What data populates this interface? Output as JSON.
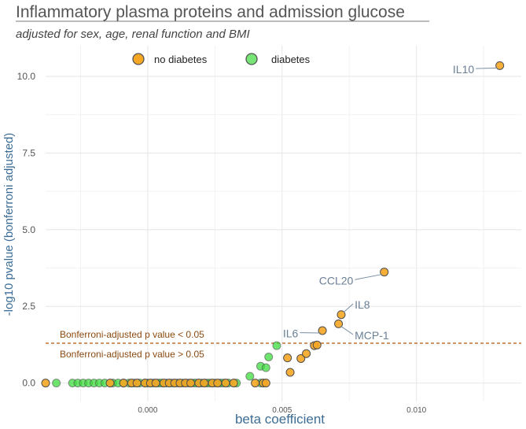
{
  "chart_data": {
    "type": "scatter",
    "title": "Inflammatory plasma proteins and admission glucose",
    "subtitle": "adjusted for sex, age, renal function and BMI",
    "xlabel": "beta coefficient",
    "ylabel": "-log10 pvalue (bonferroni adjusted)",
    "xlim": [
      -0.0038,
      0.0139
    ],
    "ylim": [
      -0.6,
      11.0
    ],
    "x_ticks": [
      0.0,
      0.005,
      0.01
    ],
    "x_tick_labels": [
      "0.000",
      "0.005",
      "0.010"
    ],
    "y_ticks": [
      0.0,
      2.5,
      5.0,
      7.5,
      10.0
    ],
    "y_tick_labels": [
      "0.0",
      "2.5",
      "5.0",
      "7.5",
      "10.0"
    ],
    "grid": true,
    "legend_position": "top",
    "reference_line": {
      "y": 1.3,
      "label_above": "Bonferroni-adjusted p value < 0.05",
      "label_below": "Bonferroni-adjusted p value > 0.05",
      "color": "#b35806"
    },
    "series": [
      {
        "name": "no diabetes",
        "color": "#f5a623",
        "points": [
          [
            -0.0038,
            0.0
          ],
          [
            -0.0014,
            0.0
          ],
          [
            -0.0009,
            0.0
          ],
          [
            -0.0006,
            0.0
          ],
          [
            -0.0004,
            0.0
          ],
          [
            -0.0001,
            0.0
          ],
          [
            0.0001,
            0.0
          ],
          [
            0.0003,
            0.0
          ],
          [
            0.0006,
            0.0
          ],
          [
            0.0008,
            0.0
          ],
          [
            0.001,
            0.0
          ],
          [
            0.0012,
            0.0
          ],
          [
            0.0014,
            0.0
          ],
          [
            0.0016,
            0.0
          ],
          [
            0.0019,
            0.0
          ],
          [
            0.0021,
            0.0
          ],
          [
            0.0024,
            0.0
          ],
          [
            0.0026,
            0.0
          ],
          [
            0.0029,
            0.0
          ],
          [
            0.0032,
            0.0
          ],
          [
            0.004,
            0.0
          ],
          [
            0.0043,
            0.0
          ],
          [
            0.0044,
            0.0
          ],
          [
            0.0053,
            0.35
          ],
          [
            0.0052,
            0.82
          ],
          [
            0.0057,
            0.8
          ],
          [
            0.0059,
            0.96
          ],
          [
            0.0062,
            1.22
          ],
          [
            0.0063,
            1.24
          ],
          [
            0.0065,
            1.71
          ],
          [
            0.0071,
            1.93
          ],
          [
            0.0072,
            2.23
          ],
          [
            0.0088,
            3.62
          ],
          [
            0.0131,
            10.35
          ]
        ],
        "labels": [
          {
            "text": "IL10",
            "index": 33,
            "dx": -0.00095,
            "dy": -0.15
          },
          {
            "text": "CCL20",
            "index": 32,
            "dx": -0.00115,
            "dy": -0.3
          },
          {
            "text": "IL8",
            "index": 31,
            "dx": 0.0005,
            "dy": 0.3
          },
          {
            "text": "MCP-1",
            "index": 30,
            "dx": 0.0006,
            "dy": -0.4
          },
          {
            "text": "IL6",
            "index": 29,
            "dx": -0.0009,
            "dy": -0.12
          }
        ]
      },
      {
        "name": "diabetes",
        "color": "#3ddc3d",
        "points": [
          [
            -0.0034,
            0.0
          ],
          [
            -0.0028,
            0.0
          ],
          [
            -0.0026,
            0.0
          ],
          [
            -0.0024,
            0.0
          ],
          [
            -0.0022,
            0.0
          ],
          [
            -0.002,
            0.0
          ],
          [
            -0.0018,
            0.0
          ],
          [
            -0.0016,
            0.0
          ],
          [
            -0.0013,
            0.0
          ],
          [
            -0.0011,
            0.0
          ],
          [
            -0.0009,
            0.0
          ],
          [
            -0.0007,
            0.0
          ],
          [
            -0.0005,
            0.0
          ],
          [
            -0.0003,
            0.0
          ],
          [
            -0.0001,
            0.0
          ],
          [
            0.0,
            0.0
          ],
          [
            0.0002,
            0.0
          ],
          [
            0.0004,
            0.0
          ],
          [
            0.0005,
            0.0
          ],
          [
            0.0007,
            0.0
          ],
          [
            0.0009,
            0.0
          ],
          [
            0.0011,
            0.0
          ],
          [
            0.0013,
            0.0
          ],
          [
            0.0015,
            0.0
          ],
          [
            0.0017,
            0.0
          ],
          [
            0.0018,
            0.0
          ],
          [
            0.002,
            0.0
          ],
          [
            0.0022,
            0.0
          ],
          [
            0.0023,
            0.0
          ],
          [
            0.0025,
            0.0
          ],
          [
            0.0027,
            0.0
          ],
          [
            0.0028,
            0.0
          ],
          [
            0.003,
            0.0
          ],
          [
            0.0033,
            0.0
          ],
          [
            0.0038,
            0.22
          ],
          [
            0.0042,
            0.0
          ],
          [
            0.0042,
            0.55
          ],
          [
            0.0044,
            0.5
          ],
          [
            0.0045,
            0.85
          ],
          [
            0.0048,
            1.22
          ]
        ]
      }
    ]
  }
}
